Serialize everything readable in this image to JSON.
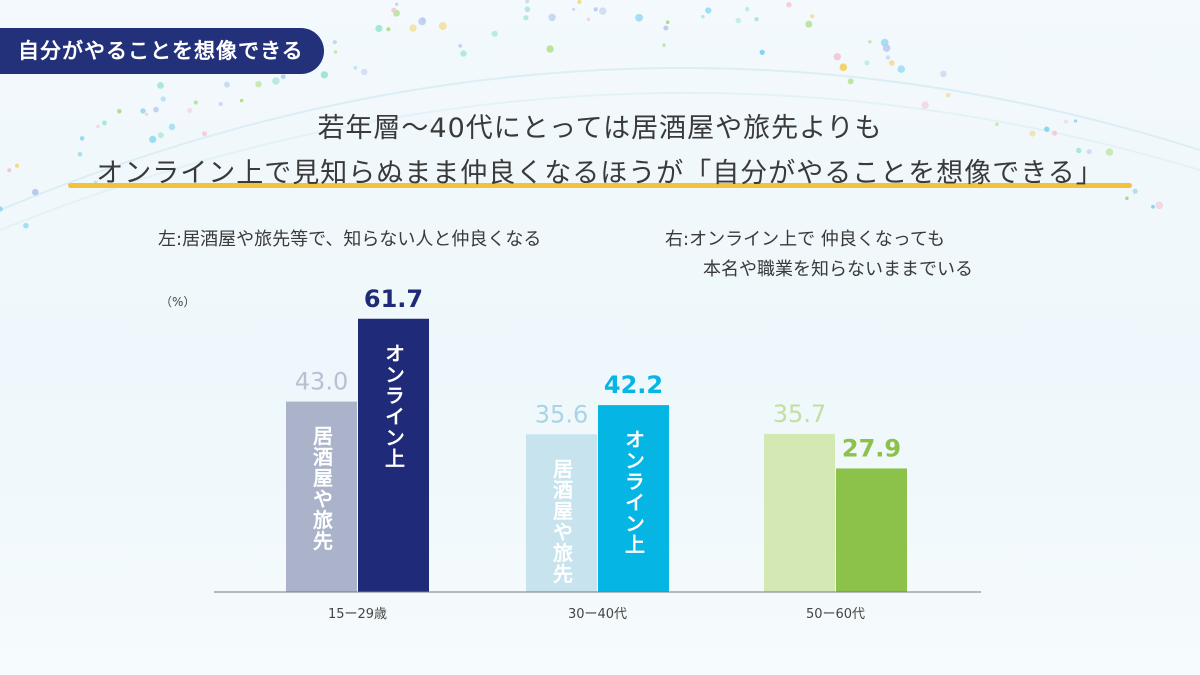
{
  "tag": "自分がやることを想像できる",
  "headline": {
    "line1": "若年層～40代にとっては居酒屋や旅先よりも",
    "line2": "オンライン上で見知らぬまま仲良くなるほうが「自分がやることを想像できる」"
  },
  "legend": {
    "left": "左:居酒屋や旅先等で、知らない人と仲良くなる",
    "right_line1": "右:オンライン上で 仲良くなっても",
    "right_line2": "本名や職業を知らないままでいる"
  },
  "unit": "（%）",
  "chart_data": {
    "type": "bar",
    "categories": [
      "15ー29歳",
      "30ー40代",
      "50ー60代"
    ],
    "ylim": [
      0,
      70
    ],
    "series": [
      {
        "values": [
          43.0,
          35.6,
          35.7
        ],
        "value_labels": [
          "43.0",
          "35.6",
          "35.7"
        ],
        "bar_labels": [
          "居酒屋や旅先",
          "居酒屋や旅先",
          ""
        ],
        "colors": [
          "#aab3c9",
          "#c6e3ee",
          "#d3e8b3"
        ],
        "label_colors": [
          "#b8c0d2",
          "#a9d4e5",
          "#c2dfa0"
        ]
      },
      {
        "values": [
          61.7,
          42.2,
          27.9
        ],
        "value_labels": [
          "61.7",
          "42.2",
          "27.9"
        ],
        "bar_labels": [
          "オンライン上",
          "オンライン上",
          ""
        ],
        "colors": [
          "#1f2a78",
          "#05b5e4",
          "#8cc14a"
        ],
        "label_colors": [
          "#1f2a78",
          "#05b5e4",
          "#8cc14a"
        ]
      }
    ]
  }
}
